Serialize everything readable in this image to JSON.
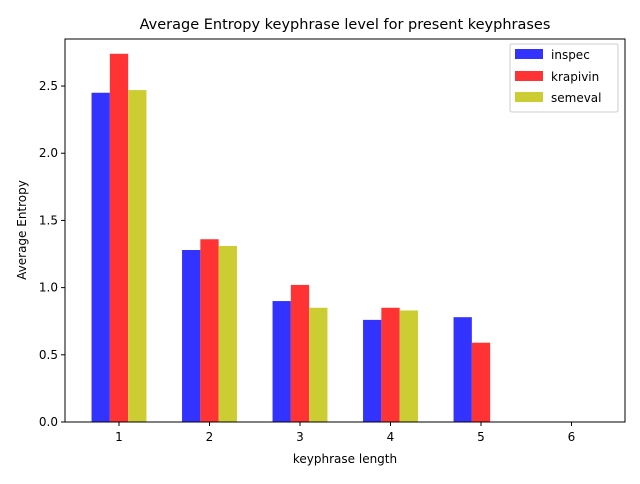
{
  "chart_data": {
    "type": "bar",
    "title": "Average Entropy keyphrase level for present keyphrases",
    "xlabel": "keyphrase length",
    "ylabel": "Average Entropy",
    "categories": [
      "1",
      "2",
      "3",
      "4",
      "5",
      "6"
    ],
    "ylim": [
      0,
      2.85
    ],
    "yticks": [
      "0.0",
      "0.5",
      "1.0",
      "1.5",
      "2.0",
      "2.5"
    ],
    "grid": false,
    "legend_position": "top-right",
    "series": [
      {
        "name": "inspec",
        "color": "#3333ff",
        "values": [
          2.45,
          1.28,
          0.9,
          0.76,
          0.78,
          0
        ]
      },
      {
        "name": "krapivin",
        "color": "#ff3333",
        "values": [
          2.74,
          1.36,
          1.02,
          0.85,
          0.59,
          0
        ]
      },
      {
        "name": "semeval",
        "color": "#cccc33",
        "values": [
          2.47,
          1.31,
          0.85,
          0.83,
          0,
          0
        ]
      }
    ]
  }
}
